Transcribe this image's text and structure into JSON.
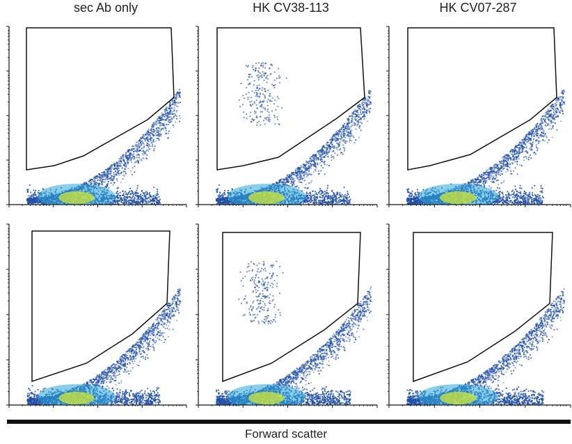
{
  "figure": {
    "column_titles": [
      "sec Ab only",
      "HK CV38-113",
      "HK CV07-287"
    ],
    "x_axis_label": "Forward scatter"
  },
  "colors": {
    "density_low": "#1f4fa6",
    "density_mid": "#2aa7d8",
    "density_high": "#c6e03b",
    "gate_line": "#111111",
    "axis": "#111111"
  },
  "chart_data": [
    {
      "type": "scatter",
      "title": "sec Ab only",
      "row": 1,
      "has_gate": true
    },
    {
      "type": "scatter",
      "title": "HK CV38-113",
      "row": 1,
      "has_gate": true
    },
    {
      "type": "scatter",
      "title": "HK CV07-287",
      "row": 1,
      "has_gate": true
    },
    {
      "type": "scatter",
      "title": "",
      "row": 2,
      "has_gate": true
    },
    {
      "type": "scatter",
      "title": "",
      "row": 2,
      "has_gate": true
    },
    {
      "type": "scatter",
      "title": "",
      "row": 2,
      "has_gate": true
    }
  ]
}
